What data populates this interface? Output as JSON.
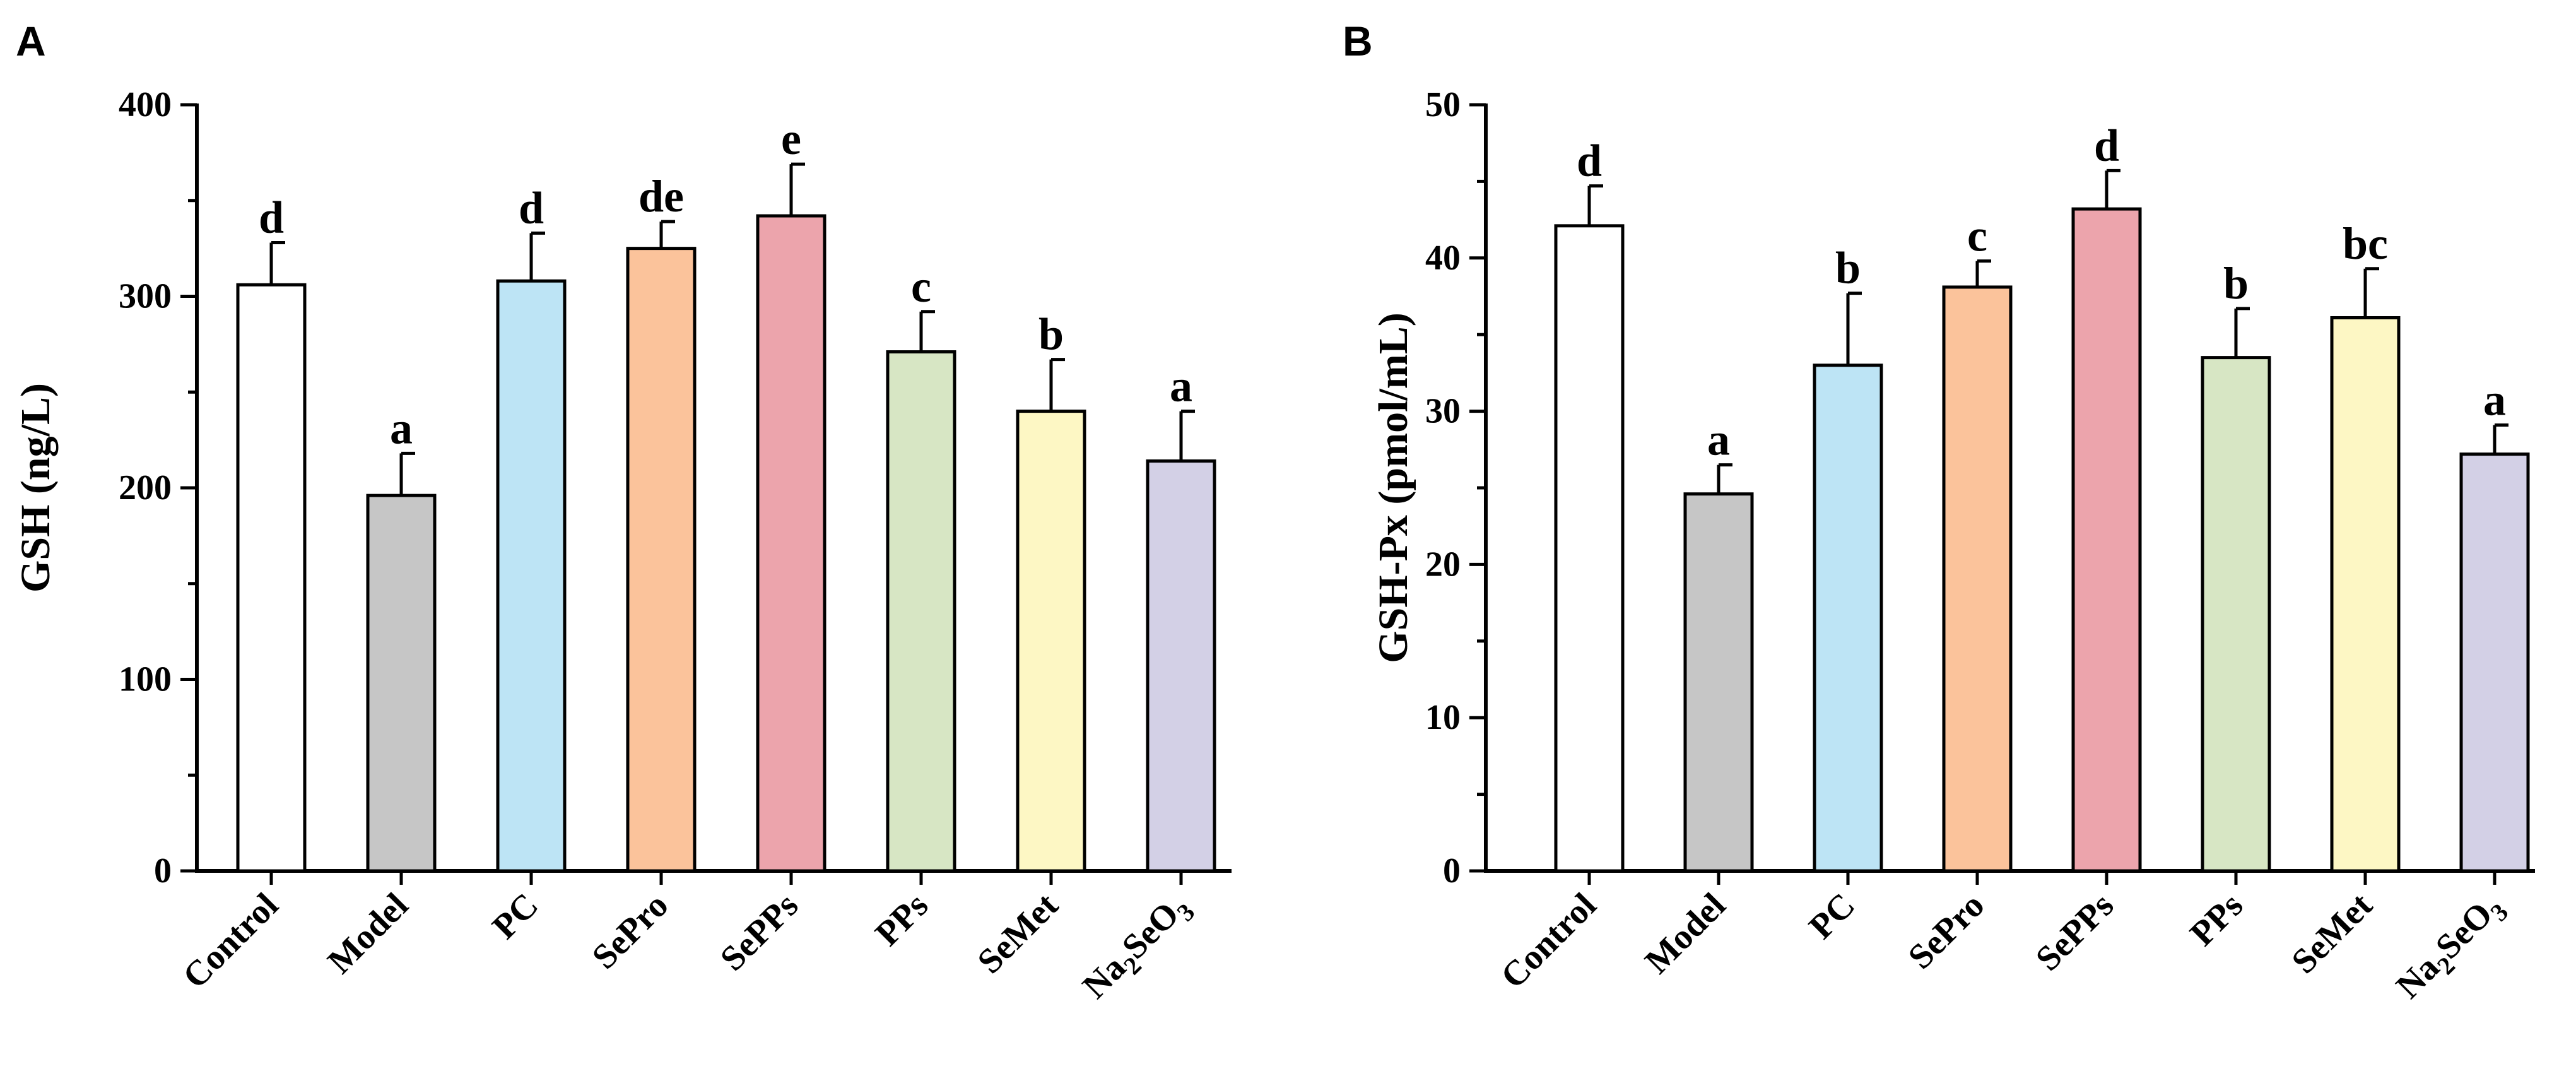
{
  "chart_data": [
    {
      "panel": "A",
      "type": "bar",
      "title": "",
      "xlabel": "",
      "ylabel": "GSH (ng/L)",
      "ylim": [
        0,
        400
      ],
      "yticks": [
        0,
        100,
        200,
        300,
        400
      ],
      "categories": [
        "Control",
        "Model",
        "PC",
        "SePro",
        "SePPs",
        "PPs",
        "SeMet",
        "Na2SeO3"
      ],
      "category_display": [
        {
          "base": "Control"
        },
        {
          "base": "Model"
        },
        {
          "base": "PC"
        },
        {
          "base": "SePro"
        },
        {
          "base": "SePPs"
        },
        {
          "base": "PPs"
        },
        {
          "base": "SeMet"
        },
        {
          "base": "Na",
          "sub1": "2",
          "mid": "SeO",
          "sub2": "3"
        }
      ],
      "values": [
        306,
        196,
        308,
        325,
        342,
        271,
        240,
        214
      ],
      "errors": [
        22,
        22,
        25,
        14,
        27,
        21,
        27,
        26
      ],
      "significance": [
        "d",
        "a",
        "d",
        "de",
        "e",
        "c",
        "b",
        "a"
      ],
      "colors": [
        "#ffffff",
        "#c6c6c6",
        "#bde4f5",
        "#fbc39b",
        "#eca4ac",
        "#d7e6c4",
        "#fdf7c4",
        "#d3d0e6"
      ]
    },
    {
      "panel": "B",
      "type": "bar",
      "title": "",
      "xlabel": "",
      "ylabel": "GSH-Px (pmol/mL)",
      "ylim": [
        0,
        50
      ],
      "yticks": [
        0,
        10,
        20,
        30,
        40,
        50
      ],
      "categories": [
        "Control",
        "Model",
        "PC",
        "SePro",
        "SePPs",
        "PPs",
        "SeMet",
        "Na2SeO3"
      ],
      "category_display": [
        {
          "base": "Control"
        },
        {
          "base": "Model"
        },
        {
          "base": "PC"
        },
        {
          "base": "SePro"
        },
        {
          "base": "SePPs"
        },
        {
          "base": "PPs"
        },
        {
          "base": "SeMet"
        },
        {
          "base": "Na",
          "sub1": "2",
          "mid": "SeO",
          "sub2": "3"
        }
      ],
      "values": [
        42.1,
        24.6,
        33.0,
        38.1,
        43.2,
        33.5,
        36.1,
        27.2
      ],
      "errors": [
        2.6,
        1.9,
        4.7,
        1.7,
        2.5,
        3.2,
        3.2,
        1.9
      ],
      "significance": [
        "d",
        "a",
        "b",
        "c",
        "d",
        "b",
        "bc",
        "a"
      ],
      "colors": [
        "#ffffff",
        "#c6c6c6",
        "#bde4f5",
        "#fbc39b",
        "#eca4ac",
        "#d7e6c4",
        "#fdf7c4",
        "#d3d0e6"
      ]
    }
  ]
}
